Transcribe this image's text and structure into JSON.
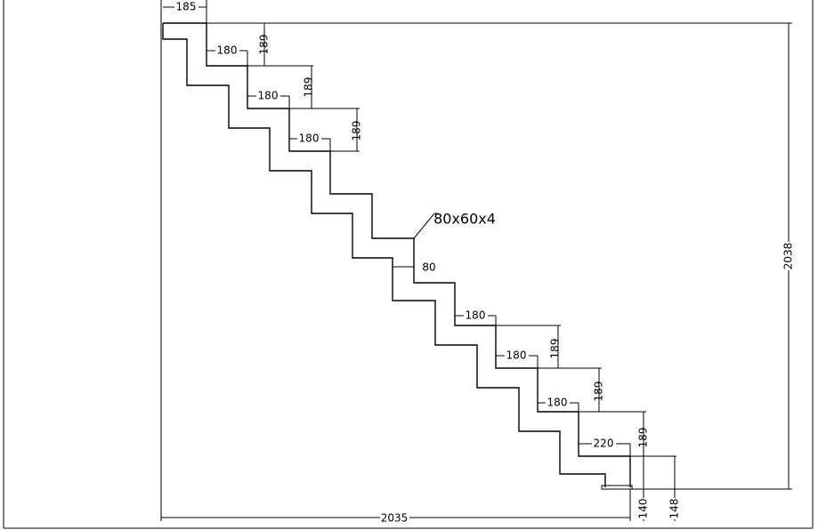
{
  "labels": [
    "185",
    "180",
    "189",
    "180",
    "189",
    "180",
    "189",
    "80x60x4",
    "80",
    "180",
    "189",
    "180",
    "189",
    "180",
    "220",
    "189",
    "2038",
    "2035",
    "140",
    "148"
  ]
}
